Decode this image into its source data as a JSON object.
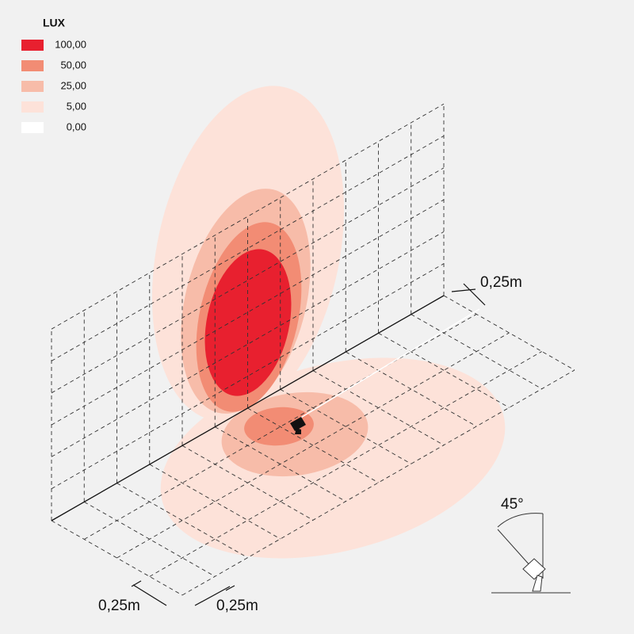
{
  "legend": {
    "title": "LUX",
    "items": [
      {
        "label": "100,00",
        "color": "#e8202f"
      },
      {
        "label": "50,00",
        "color": "#f28c74"
      },
      {
        "label": "25,00",
        "color": "#f7bca9"
      },
      {
        "label": "5,00",
        "color": "#fde2d9"
      },
      {
        "label": "0,00",
        "color": "#ffffff"
      }
    ]
  },
  "dimensions": [
    "0,25m",
    "0,25m",
    "0,25m"
  ],
  "angle": "45°"
}
